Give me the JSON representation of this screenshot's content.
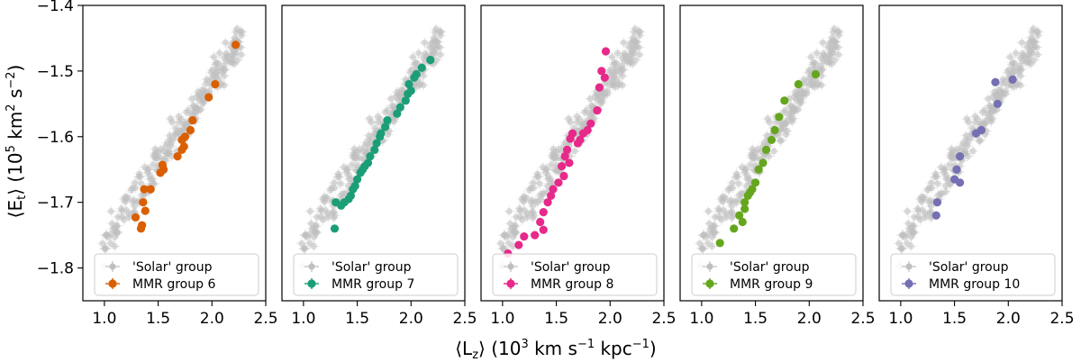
{
  "chart_data": {
    "type": "scatter",
    "xlabel": "⟨L_z⟩ (10^3 km s^-1 kpc^-1)",
    "ylabel": "⟨E_t⟩ (10^5 km^2 s^-2)",
    "xlim": [
      0.8,
      2.5
    ],
    "ylim": [
      -1.85,
      -1.4
    ],
    "xticks": [
      1.0,
      1.5,
      2.0,
      2.5
    ],
    "xtick_labels": [
      "1.0",
      "1.5",
      "2.0",
      "2.5"
    ],
    "yticks": [
      -1.4,
      -1.5,
      -1.6,
      -1.7,
      -1.8
    ],
    "ytick_labels": [
      "−1.4",
      "−1.5",
      "−1.6",
      "−1.7",
      "−1.8"
    ],
    "background": {
      "name": "'Solar' group",
      "color": "#bfbfbf",
      "trend": {
        "y0": -1.762,
        "x0": 1.0,
        "slope": 0.245,
        "x_range": [
          0.98,
          2.28
        ],
        "spread": 0.014,
        "count": 230,
        "seed": 7
      }
    },
    "panels": [
      {
        "legend": [
          "'Solar' group",
          "MMR group 6"
        ],
        "color": "#d95f02",
        "points": [
          [
            2.22,
            -1.46
          ],
          [
            2.03,
            -1.52
          ],
          [
            1.97,
            -1.54
          ],
          [
            1.82,
            -1.575
          ],
          [
            1.8,
            -1.59
          ],
          [
            1.75,
            -1.6
          ],
          [
            1.72,
            -1.605
          ],
          [
            1.74,
            -1.615
          ],
          [
            1.72,
            -1.62
          ],
          [
            1.68,
            -1.63
          ],
          [
            1.54,
            -1.643
          ],
          [
            1.55,
            -1.65
          ],
          [
            1.52,
            -1.655
          ],
          [
            1.43,
            -1.68
          ],
          [
            1.37,
            -1.68
          ],
          [
            1.36,
            -1.7
          ],
          [
            1.38,
            -1.713
          ],
          [
            1.29,
            -1.723
          ],
          [
            1.35,
            -1.735
          ],
          [
            1.34,
            -1.74
          ]
        ]
      },
      {
        "legend": [
          "'Solar' group",
          "MMR group 7"
        ],
        "color": "#1b9e77",
        "points": [
          [
            2.18,
            -1.483
          ],
          [
            2.1,
            -1.495
          ],
          [
            2.05,
            -1.505
          ],
          [
            2.03,
            -1.51
          ],
          [
            1.98,
            -1.52
          ],
          [
            2.0,
            -1.53
          ],
          [
            1.97,
            -1.535
          ],
          [
            1.95,
            -1.545
          ],
          [
            1.9,
            -1.555
          ],
          [
            1.87,
            -1.565
          ],
          [
            1.78,
            -1.575
          ],
          [
            1.76,
            -1.585
          ],
          [
            1.72,
            -1.595
          ],
          [
            1.71,
            -1.6
          ],
          [
            1.68,
            -1.61
          ],
          [
            1.66,
            -1.62
          ],
          [
            1.62,
            -1.63
          ],
          [
            1.6,
            -1.64
          ],
          [
            1.57,
            -1.645
          ],
          [
            1.55,
            -1.65
          ],
          [
            1.53,
            -1.655
          ],
          [
            1.5,
            -1.665
          ],
          [
            1.48,
            -1.675
          ],
          [
            1.46,
            -1.68
          ],
          [
            1.44,
            -1.69
          ],
          [
            1.42,
            -1.695
          ],
          [
            1.38,
            -1.7
          ],
          [
            1.35,
            -1.705
          ],
          [
            1.3,
            -1.7
          ],
          [
            1.29,
            -1.74
          ]
        ]
      },
      {
        "legend": [
          "'Solar' group",
          "MMR group 8"
        ],
        "color": "#e7298a",
        "points": [
          [
            1.96,
            -1.47
          ],
          [
            1.92,
            -1.5
          ],
          [
            1.95,
            -1.51
          ],
          [
            1.9,
            -1.525
          ],
          [
            1.88,
            -1.56
          ],
          [
            1.82,
            -1.58
          ],
          [
            1.79,
            -1.59
          ],
          [
            1.75,
            -1.595
          ],
          [
            1.72,
            -1.605
          ],
          [
            1.7,
            -1.61
          ],
          [
            1.65,
            -1.595
          ],
          [
            1.63,
            -1.603
          ],
          [
            1.6,
            -1.62
          ],
          [
            1.58,
            -1.63
          ],
          [
            1.62,
            -1.64
          ],
          [
            1.55,
            -1.645
          ],
          [
            1.57,
            -1.66
          ],
          [
            1.52,
            -1.67
          ],
          [
            1.47,
            -1.68
          ],
          [
            1.45,
            -1.69
          ],
          [
            1.42,
            -1.7
          ],
          [
            1.38,
            -1.715
          ],
          [
            1.35,
            -1.73
          ],
          [
            1.38,
            -1.742
          ],
          [
            1.3,
            -1.75
          ],
          [
            1.2,
            -1.752
          ],
          [
            1.15,
            -1.765
          ],
          [
            1.05,
            -1.778
          ]
        ]
      },
      {
        "legend": [
          "'Solar' group",
          "MMR group 9"
        ],
        "color": "#66a61e",
        "points": [
          [
            2.06,
            -1.505
          ],
          [
            1.9,
            -1.52
          ],
          [
            1.77,
            -1.545
          ],
          [
            1.72,
            -1.57
          ],
          [
            1.68,
            -1.59
          ],
          [
            1.65,
            -1.605
          ],
          [
            1.6,
            -1.62
          ],
          [
            1.57,
            -1.64
          ],
          [
            1.53,
            -1.65
          ],
          [
            1.5,
            -1.67
          ],
          [
            1.47,
            -1.68
          ],
          [
            1.45,
            -1.685
          ],
          [
            1.43,
            -1.69
          ],
          [
            1.4,
            -1.7
          ],
          [
            1.4,
            -1.71
          ],
          [
            1.35,
            -1.72
          ],
          [
            1.38,
            -1.73
          ],
          [
            1.3,
            -1.74
          ],
          [
            1.17,
            -1.762
          ]
        ]
      },
      {
        "legend": [
          "'Solar' group",
          "MMR group 10"
        ],
        "color": "#7570b3",
        "points": [
          [
            2.04,
            -1.513
          ],
          [
            1.88,
            -1.517
          ],
          [
            1.9,
            -1.55
          ],
          [
            1.75,
            -1.59
          ],
          [
            1.7,
            -1.595
          ],
          [
            1.55,
            -1.63
          ],
          [
            1.52,
            -1.65
          ],
          [
            1.5,
            -1.665
          ],
          [
            1.55,
            -1.67
          ],
          [
            1.34,
            -1.7
          ],
          [
            1.33,
            -1.72
          ]
        ]
      }
    ]
  }
}
